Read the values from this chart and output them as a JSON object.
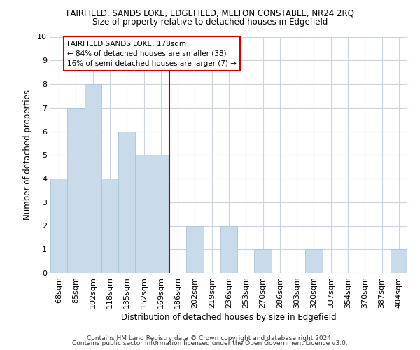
{
  "title": "FAIRFIELD, SANDS LOKE, EDGEFIELD, MELTON CONSTABLE, NR24 2RQ",
  "subtitle": "Size of property relative to detached houses in Edgefield",
  "xlabel": "Distribution of detached houses by size in Edgefield",
  "ylabel": "Number of detached properties",
  "categories": [
    "68sqm",
    "85sqm",
    "102sqm",
    "118sqm",
    "135sqm",
    "152sqm",
    "169sqm",
    "186sqm",
    "202sqm",
    "219sqm",
    "236sqm",
    "253sqm",
    "270sqm",
    "286sqm",
    "303sqm",
    "320sqm",
    "337sqm",
    "354sqm",
    "370sqm",
    "387sqm",
    "404sqm"
  ],
  "values": [
    4,
    7,
    8,
    4,
    6,
    5,
    5,
    0,
    2,
    0,
    2,
    0,
    1,
    0,
    0,
    1,
    0,
    0,
    0,
    0,
    1
  ],
  "bar_color": "#c9daea",
  "bar_edge_color": "#a8c4d8",
  "vline_color": "#aa0000",
  "vline_x_index": 7,
  "ylim": [
    0,
    10
  ],
  "annotation_title": "FAIRFIELD SANDS LOKE: 178sqm",
  "annotation_line1": "← 84% of detached houses are smaller (38)",
  "annotation_line2": "16% of semi-detached houses are larger (7) →",
  "annotation_box_edgecolor": "#cc0000",
  "annotation_box_facecolor": "#ffffff",
  "footer1": "Contains HM Land Registry data © Crown copyright and database right 2024.",
  "footer2": "Contains public sector information licensed under the Open Government Licence v3.0.",
  "bg_color": "#ffffff",
  "grid_color": "#c8d4e0",
  "title_fontsize": 8.5,
  "subtitle_fontsize": 8.5,
  "axis_label_fontsize": 8.5,
  "tick_fontsize": 8,
  "annotation_fontsize": 7.5,
  "footer_fontsize": 6.5
}
